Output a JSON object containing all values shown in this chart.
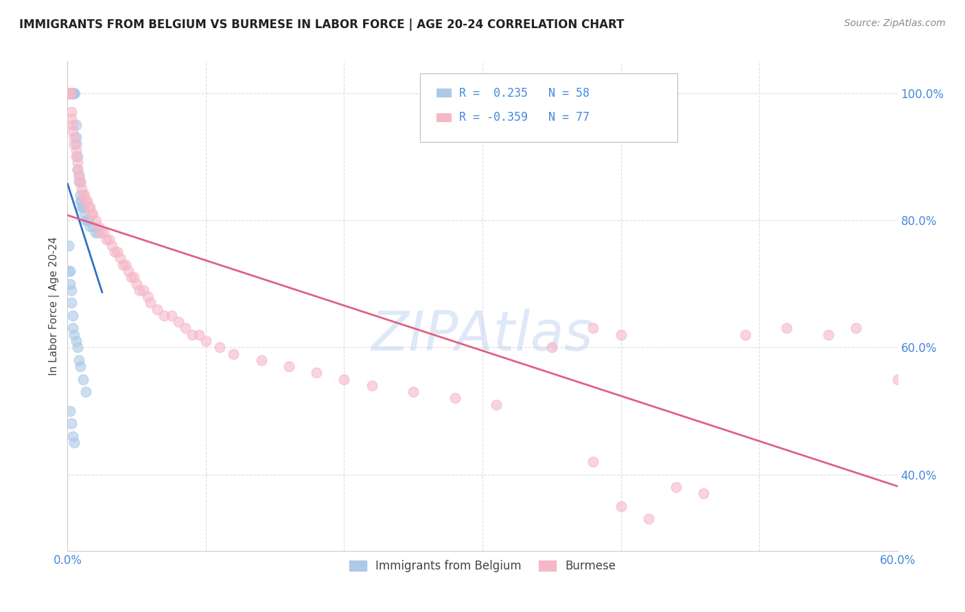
{
  "title": "IMMIGRANTS FROM BELGIUM VS BURMESE IN LABOR FORCE | AGE 20-24 CORRELATION CHART",
  "source": "Source: ZipAtlas.com",
  "ylabel": "In Labor Force | Age 20-24",
  "xlim": [
    0.0,
    0.6
  ],
  "ylim": [
    0.28,
    1.05
  ],
  "xtick_positions": [
    0.0,
    0.1,
    0.2,
    0.3,
    0.4,
    0.5,
    0.6
  ],
  "xticklabels": [
    "0.0%",
    "",
    "",
    "",
    "",
    "",
    "60.0%"
  ],
  "ytick_positions": [
    0.4,
    0.6,
    0.8,
    1.0
  ],
  "yticklabels": [
    "40.0%",
    "60.0%",
    "80.0%",
    "100.0%"
  ],
  "legend_label_blue": "Immigrants from Belgium",
  "legend_label_pink": "Burmese",
  "R_blue": 0.235,
  "N_blue": 58,
  "R_pink": -0.359,
  "N_pink": 77,
  "blue_scatter_color": "#adc9e8",
  "pink_scatter_color": "#f5b8c8",
  "blue_line_color": "#3070c0",
  "pink_line_color": "#e06080",
  "watermark": "ZIPAtlas",
  "background_color": "#ffffff",
  "grid_color": "#dddddd",
  "tick_color": "#4488dd",
  "title_color": "#222222",
  "source_color": "#888888",
  "blue_x": [
    0.001,
    0.001,
    0.001,
    0.001,
    0.002,
    0.002,
    0.002,
    0.002,
    0.003,
    0.003,
    0.003,
    0.003,
    0.004,
    0.004,
    0.004,
    0.005,
    0.005,
    0.005,
    0.006,
    0.006,
    0.006,
    0.007,
    0.007,
    0.008,
    0.008,
    0.009,
    0.009,
    0.01,
    0.01,
    0.011,
    0.011,
    0.012,
    0.013,
    0.014,
    0.015,
    0.016,
    0.018,
    0.02,
    0.022,
    0.001,
    0.001,
    0.002,
    0.002,
    0.003,
    0.003,
    0.004,
    0.004,
    0.005,
    0.006,
    0.007,
    0.008,
    0.009,
    0.011,
    0.013,
    0.002,
    0.003,
    0.004,
    0.005
  ],
  "blue_y": [
    1.0,
    1.0,
    1.0,
    1.0,
    1.0,
    1.0,
    1.0,
    1.0,
    1.0,
    1.0,
    1.0,
    1.0,
    1.0,
    1.0,
    1.0,
    1.0,
    1.0,
    1.0,
    0.95,
    0.93,
    0.92,
    0.9,
    0.88,
    0.87,
    0.86,
    0.84,
    0.83,
    0.83,
    0.82,
    0.82,
    0.82,
    0.81,
    0.8,
    0.8,
    0.8,
    0.79,
    0.79,
    0.78,
    0.78,
    0.76,
    0.72,
    0.72,
    0.7,
    0.69,
    0.67,
    0.65,
    0.63,
    0.62,
    0.61,
    0.6,
    0.58,
    0.57,
    0.55,
    0.53,
    0.5,
    0.48,
    0.46,
    0.45
  ],
  "pink_x": [
    0.001,
    0.001,
    0.002,
    0.002,
    0.003,
    0.003,
    0.004,
    0.004,
    0.005,
    0.005,
    0.006,
    0.006,
    0.007,
    0.007,
    0.008,
    0.009,
    0.009,
    0.01,
    0.011,
    0.012,
    0.013,
    0.014,
    0.015,
    0.016,
    0.017,
    0.018,
    0.02,
    0.022,
    0.024,
    0.026,
    0.028,
    0.03,
    0.032,
    0.034,
    0.036,
    0.038,
    0.04,
    0.042,
    0.044,
    0.046,
    0.048,
    0.05,
    0.052,
    0.055,
    0.058,
    0.06,
    0.065,
    0.07,
    0.075,
    0.08,
    0.085,
    0.09,
    0.095,
    0.1,
    0.11,
    0.12,
    0.14,
    0.16,
    0.18,
    0.2,
    0.22,
    0.25,
    0.28,
    0.31,
    0.35,
    0.38,
    0.4,
    0.42,
    0.44,
    0.46,
    0.49,
    0.52,
    0.55,
    0.57,
    0.6,
    0.38,
    0.4
  ],
  "pink_y": [
    1.0,
    1.0,
    1.0,
    1.0,
    0.97,
    0.96,
    0.95,
    0.94,
    0.93,
    0.92,
    0.91,
    0.9,
    0.89,
    0.88,
    0.87,
    0.86,
    0.86,
    0.85,
    0.84,
    0.84,
    0.83,
    0.83,
    0.82,
    0.82,
    0.81,
    0.81,
    0.8,
    0.79,
    0.78,
    0.78,
    0.77,
    0.77,
    0.76,
    0.75,
    0.75,
    0.74,
    0.73,
    0.73,
    0.72,
    0.71,
    0.71,
    0.7,
    0.69,
    0.69,
    0.68,
    0.67,
    0.66,
    0.65,
    0.65,
    0.64,
    0.63,
    0.62,
    0.62,
    0.61,
    0.6,
    0.59,
    0.58,
    0.57,
    0.56,
    0.55,
    0.54,
    0.53,
    0.52,
    0.51,
    0.6,
    0.42,
    0.35,
    0.33,
    0.38,
    0.37,
    0.62,
    0.63,
    0.62,
    0.63,
    0.55,
    0.63,
    0.62
  ]
}
